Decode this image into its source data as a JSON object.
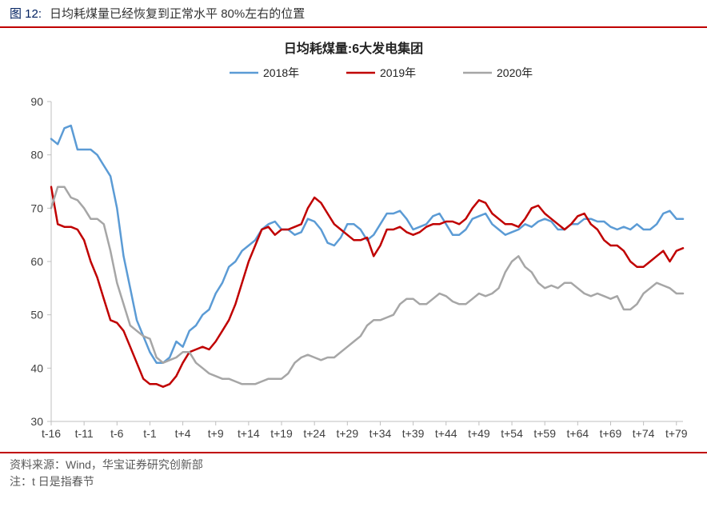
{
  "header": {
    "figure_label": "图 12:",
    "figure_title": "日均耗煤量已经恢复到正常水平 80%左右的位置"
  },
  "footer": {
    "source": "资料来源：Wind，华宝证券研究创新部",
    "note": "注：t 日是指春节"
  },
  "chart": {
    "type": "line",
    "title": "日均耗煤量:6大发电集团",
    "title_fontsize": 16,
    "label_fontsize": 14,
    "background_color": "#ffffff",
    "y": {
      "min": 30,
      "max": 90,
      "ticks": [
        30,
        40,
        50,
        60,
        70,
        80,
        90
      ]
    },
    "x": {
      "start": -16,
      "end": 80,
      "tick_step": 5,
      "tick_labels": [
        "t-16",
        "t-11",
        "t-6",
        "t-1",
        "t+4",
        "t+9",
        "t+14",
        "t+19",
        "t+24",
        "t+29",
        "t+34",
        "t+39",
        "t+44",
        "t+49",
        "t+54",
        "t+59",
        "t+64",
        "t+69",
        "t+74",
        "t+79"
      ]
    },
    "axis_color": "#bfbfbf",
    "tickmark_color": "#bfbfbf",
    "line_width": 2.5,
    "legend": {
      "position": "top-center",
      "items": [
        {
          "key": "s2018",
          "label": "2018年"
        },
        {
          "key": "s2019",
          "label": "2019年"
        },
        {
          "key": "s2020",
          "label": "2020年"
        }
      ]
    },
    "series": {
      "s2018": {
        "label": "2018年",
        "color": "#5b9bd5",
        "data": [
          83,
          82,
          85,
          85.5,
          81,
          81,
          81,
          80,
          78,
          76,
          70,
          61,
          55,
          49,
          46,
          43,
          41,
          41,
          42,
          45,
          44,
          47,
          48,
          50,
          51,
          54,
          56,
          59,
          60,
          62,
          63,
          64,
          66,
          67,
          67.5,
          66,
          66,
          65,
          65.5,
          68,
          67.5,
          66,
          63.5,
          63,
          64.5,
          67,
          67,
          66,
          64,
          65,
          67,
          69,
          69,
          69.5,
          68,
          66,
          66.5,
          67,
          68.5,
          69,
          67,
          65,
          65,
          66,
          68,
          68.5,
          69,
          67,
          66,
          65,
          65.5,
          66,
          67,
          66.5,
          67.5,
          68,
          67.5,
          66,
          66,
          67,
          67,
          68,
          68,
          67.5,
          67.5,
          66.5,
          66,
          66.5,
          66,
          67,
          66,
          66,
          67,
          69,
          69.5,
          68,
          68
        ]
      },
      "s2019": {
        "label": "2019年",
        "color": "#c00000",
        "data": [
          74,
          67,
          66.5,
          66.5,
          66,
          64,
          60,
          57,
          53,
          49,
          48.5,
          47,
          44,
          41,
          38,
          37,
          37,
          36.5,
          37,
          38.5,
          41,
          43,
          43.5,
          44,
          43.5,
          45,
          47,
          49,
          52,
          56,
          60,
          63,
          66,
          66.5,
          65,
          66,
          66,
          66.5,
          67,
          70,
          72,
          71,
          69,
          67,
          66,
          65,
          64,
          64,
          64.5,
          61,
          63,
          66,
          66,
          66.5,
          65.5,
          65,
          65.5,
          66.5,
          67,
          67,
          67.5,
          67.5,
          67,
          68,
          70,
          71.5,
          71,
          69,
          68,
          67,
          67,
          66.5,
          68,
          70,
          70.5,
          69,
          68,
          67,
          66,
          67,
          68.5,
          69,
          67,
          66,
          64,
          63,
          63,
          62,
          60,
          59,
          59,
          60,
          61,
          62,
          60,
          62,
          62.5
        ]
      },
      "s2020": {
        "label": "2020年",
        "color": "#a6a6a6",
        "data": [
          70,
          74,
          74,
          72,
          71.5,
          70,
          68,
          68,
          67,
          62,
          56,
          52,
          48,
          47,
          46,
          45.5,
          42,
          41,
          41.5,
          42,
          43,
          43,
          41,
          40,
          39,
          38.5,
          38,
          38,
          37.5,
          37,
          37,
          37,
          37.5,
          38,
          38,
          38,
          39,
          41,
          42,
          42.5,
          42,
          41.5,
          42,
          42,
          43,
          44,
          45,
          46,
          48,
          49,
          49,
          49.5,
          50,
          52,
          53,
          53,
          52,
          52,
          53,
          54,
          53.5,
          52.5,
          52,
          52,
          53,
          54,
          53.5,
          54,
          55,
          58,
          60,
          61,
          59,
          58,
          56,
          55,
          55.5,
          55,
          56,
          56,
          55,
          54,
          53.5,
          54,
          53.5,
          53,
          53.5,
          51,
          51,
          52,
          54,
          55,
          56,
          55.5,
          55,
          54,
          54
        ]
      }
    }
  }
}
